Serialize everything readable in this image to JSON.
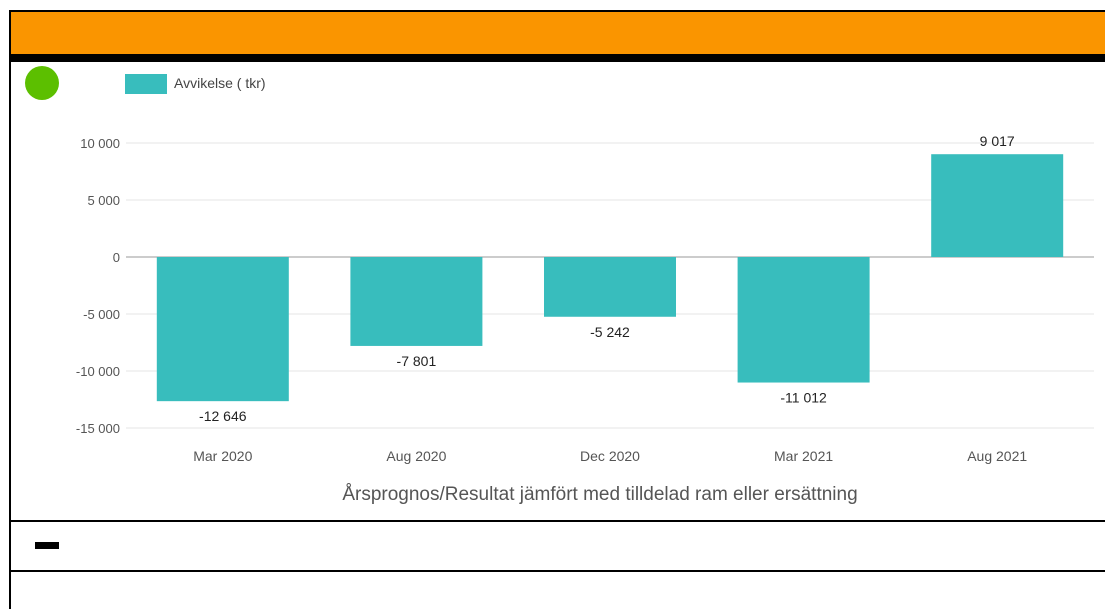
{
  "header": {
    "color": "#FA9500"
  },
  "status": {
    "icon": "status-dot-icon",
    "color": "#5CBF00"
  },
  "legend": {
    "label": "Avvikelse ( tkr)",
    "color": "#38BDBD"
  },
  "chart_data": {
    "type": "bar",
    "title": "Årsprognos/Resultat jämfört med tilldelad ram eller ersättning",
    "categories": [
      "Mar 2020",
      "Aug 2020",
      "Dec 2020",
      "Mar 2021",
      "Aug 2021"
    ],
    "series": [
      {
        "name": "Avvikelse ( tkr)",
        "values": [
          -12646,
          -7801,
          -5242,
          -11012,
          9017
        ]
      }
    ],
    "data_labels": [
      "-12 646",
      "-7 801",
      "-5 242",
      "-11 012",
      "9 017"
    ],
    "yticks": [
      10000,
      5000,
      0,
      -5000,
      -10000,
      -15000
    ],
    "ytick_labels": [
      "10 000",
      "5 000",
      "0",
      "-5 000",
      "-10 000",
      "-15 000"
    ],
    "ylim": [
      -15000,
      10000
    ],
    "grid": true,
    "legend_position": "top-left"
  },
  "section": {
    "collapse_icon": "minus-icon"
  }
}
